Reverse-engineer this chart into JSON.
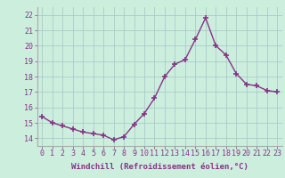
{
  "x": [
    0,
    1,
    2,
    3,
    4,
    5,
    6,
    7,
    8,
    9,
    10,
    11,
    12,
    13,
    14,
    15,
    16,
    17,
    18,
    19,
    20,
    21,
    22,
    23
  ],
  "y": [
    15.4,
    15.0,
    14.8,
    14.6,
    14.4,
    14.3,
    14.2,
    13.9,
    14.1,
    14.9,
    15.6,
    16.6,
    18.0,
    18.8,
    19.1,
    20.4,
    21.8,
    20.0,
    19.4,
    18.2,
    17.5,
    17.4,
    17.1,
    17.0
  ],
  "line_color": "#883388",
  "marker": "+",
  "markersize": 4,
  "markeredgewidth": 1.2,
  "linewidth": 1.0,
  "xlabel": "Windchill (Refroidissement éolien,°C)",
  "xlabel_fontsize": 6.5,
  "ylim": [
    13.5,
    22.5
  ],
  "xlim": [
    -0.5,
    23.5
  ],
  "yticks": [
    14,
    15,
    16,
    17,
    18,
    19,
    20,
    21,
    22
  ],
  "xticks": [
    0,
    1,
    2,
    3,
    4,
    5,
    6,
    7,
    8,
    9,
    10,
    11,
    12,
    13,
    14,
    15,
    16,
    17,
    18,
    19,
    20,
    21,
    22,
    23
  ],
  "background_color": "#cceedd",
  "grid_color": "#aacccc",
  "tick_fontsize": 6.0,
  "fig_bg": "#cceedd",
  "spine_color": "#aaaaaa"
}
